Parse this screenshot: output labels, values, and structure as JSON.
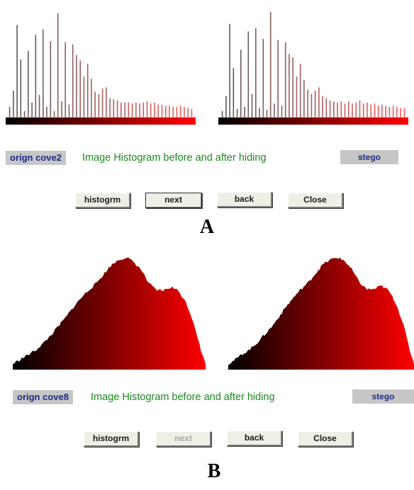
{
  "panel_a": {
    "left_tag": "orign cove2",
    "title": "Image Histogram before and after hiding",
    "right_tag": "stego",
    "buttons": {
      "histogram": "histogrm",
      "next": "next",
      "back": "back",
      "close": "Close"
    },
    "caption": "A"
  },
  "panel_b": {
    "left_tag": "orign cove8",
    "title": "Image Histogram before and after hiding",
    "right_tag": "stego",
    "buttons": {
      "histogram": "histogrm",
      "next": "next",
      "back": "back",
      "close": "Close"
    },
    "caption": "B"
  },
  "colors": {
    "histogram_dark": "#000000",
    "histogram_bright": "#ff0000",
    "tag_background": "#c6c6c6",
    "tag_text": "#1e2a8a",
    "title_text": "#1c8a1c"
  },
  "chart_data": [
    {
      "type": "bar",
      "name": "Panel A - original histogram",
      "values": [
        0.1,
        0.25,
        0.86,
        0.54,
        0.06,
        0.62,
        0.14,
        0.77,
        0.21,
        0.82,
        0.1,
        0.71,
        0.06,
        0.97,
        0.15,
        0.7,
        0.12,
        0.68,
        0.58,
        0.53,
        0.38,
        0.5,
        0.36,
        0.24,
        0.22,
        0.27,
        0.28,
        0.18,
        0.17,
        0.16,
        0.14,
        0.14,
        0.14,
        0.13,
        0.14,
        0.13,
        0.14,
        0.15,
        0.13,
        0.14,
        0.12,
        0.12,
        0.11,
        0.11,
        0.1,
        0.1,
        0.11,
        0.1,
        0.09,
        0.08
      ]
    },
    {
      "type": "bar",
      "name": "Panel A - stego histogram",
      "values": [
        0.06,
        0.2,
        0.87,
        0.46,
        0.08,
        0.63,
        0.1,
        0.8,
        0.22,
        0.83,
        0.09,
        0.73,
        0.07,
        0.98,
        0.13,
        0.72,
        0.11,
        0.7,
        0.59,
        0.56,
        0.38,
        0.5,
        0.35,
        0.26,
        0.22,
        0.25,
        0.28,
        0.2,
        0.18,
        0.16,
        0.15,
        0.14,
        0.15,
        0.13,
        0.15,
        0.13,
        0.14,
        0.16,
        0.13,
        0.14,
        0.12,
        0.13,
        0.11,
        0.12,
        0.11,
        0.1,
        0.11,
        0.1,
        0.09,
        0.09
      ]
    },
    {
      "type": "area",
      "name": "Panel B - original histogram",
      "x": [
        0,
        10,
        20,
        30,
        40,
        50,
        60,
        70,
        80,
        90,
        100,
        110,
        120,
        130,
        140,
        150,
        160,
        170,
        180,
        190,
        200,
        210,
        220,
        230,
        240,
        250,
        255
      ],
      "y": [
        0.05,
        0.09,
        0.13,
        0.17,
        0.23,
        0.3,
        0.38,
        0.46,
        0.55,
        0.63,
        0.7,
        0.76,
        0.84,
        0.92,
        0.97,
        0.99,
        0.95,
        0.88,
        0.76,
        0.7,
        0.7,
        0.73,
        0.69,
        0.58,
        0.4,
        0.14,
        0.06
      ]
    },
    {
      "type": "area",
      "name": "Panel B - stego histogram",
      "x": [
        0,
        10,
        20,
        30,
        40,
        50,
        60,
        70,
        80,
        90,
        100,
        110,
        120,
        130,
        140,
        150,
        160,
        170,
        180,
        190,
        200,
        210,
        220,
        230,
        240,
        250,
        255
      ],
      "y": [
        0.05,
        0.09,
        0.14,
        0.18,
        0.24,
        0.31,
        0.38,
        0.47,
        0.56,
        0.64,
        0.71,
        0.77,
        0.85,
        0.93,
        0.97,
        0.99,
        0.96,
        0.88,
        0.77,
        0.71,
        0.71,
        0.74,
        0.7,
        0.59,
        0.41,
        0.15,
        0.06
      ]
    }
  ]
}
